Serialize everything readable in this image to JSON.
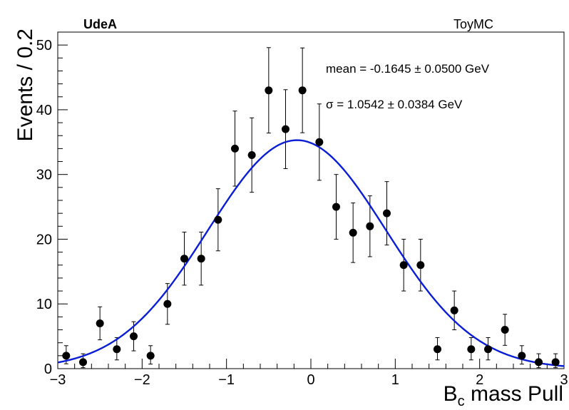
{
  "corner_labels": {
    "left": "UdeA",
    "right": "ToyMC"
  },
  "annotations": {
    "mean": "mean = -0.1645 ± 0.0500 GeV",
    "sigma": "σ = 1.0542 ± 0.0384 GeV"
  },
  "colors": {
    "fit_curve": "#0a1ed6",
    "points": "#000000"
  },
  "chart_data": {
    "type": "scatter",
    "xlabel": "B",
    "xlabel_sub": "c",
    "xlabel_rest": " mass Pull",
    "ylabel": "Events / 0.2",
    "xlim": [
      -3,
      3
    ],
    "ylim": [
      0,
      52
    ],
    "x_ticks": [
      -3,
      -2,
      -1,
      0,
      1,
      2,
      3
    ],
    "x_tick_labels": [
      "−3",
      "−2",
      "−1",
      "0",
      "1",
      "2",
      "3"
    ],
    "y_ticks": [
      0,
      10,
      20,
      30,
      40,
      50
    ],
    "y_tick_labels": [
      "0",
      "10",
      "20",
      "30",
      "40",
      "50"
    ],
    "grid": false,
    "series": [
      {
        "x": [
          -2.9,
          -2.7,
          -2.5,
          -2.3,
          -2.1,
          -1.9,
          -1.7,
          -1.5,
          -1.3,
          -1.1,
          -0.9,
          -0.7,
          -0.5,
          -0.3,
          -0.1,
          0.1,
          0.3,
          0.5,
          0.7,
          0.9,
          1.1,
          1.3,
          1.5,
          1.7,
          1.9,
          2.1,
          2.3,
          2.5,
          2.7,
          2.9
        ],
        "y": [
          2,
          1,
          7,
          3,
          5,
          2,
          10,
          17,
          17,
          23,
          34,
          33,
          43,
          37,
          43,
          35,
          25,
          21,
          22,
          24,
          16,
          16,
          3,
          9,
          3,
          3,
          6,
          2,
          1,
          1
        ],
        "yerr_up": [
          1.55,
          1.3,
          2.55,
          1.8,
          2.25,
          1.55,
          3.15,
          4.1,
          4.1,
          4.8,
          5.8,
          5.75,
          6.6,
          6.1,
          6.55,
          5.9,
          5.0,
          4.6,
          4.7,
          4.9,
          4.0,
          4.0,
          1.8,
          3.0,
          1.8,
          1.8,
          2.4,
          1.55,
          1.3,
          1.3
        ],
        "yerr_down": [
          1.25,
          0.85,
          2.55,
          1.65,
          2.25,
          1.3,
          3.15,
          4.1,
          4.1,
          4.8,
          5.8,
          5.75,
          6.6,
          6.1,
          6.55,
          5.9,
          5.0,
          4.6,
          4.7,
          4.9,
          4.0,
          4.0,
          1.65,
          3.0,
          1.65,
          1.65,
          2.4,
          1.3,
          0.85,
          0.85
        ]
      }
    ],
    "fit": {
      "type": "gaussian",
      "mean": -0.1645,
      "sigma": 1.0542,
      "amplitude": 35.3
    }
  }
}
